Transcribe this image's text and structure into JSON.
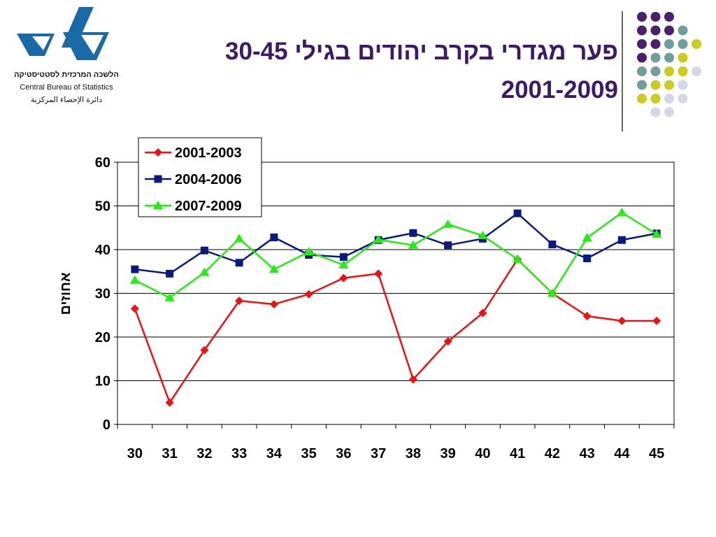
{
  "logo": {
    "hebrew": "הלשכה המרכזית לסטטיסטיקה",
    "english": "Central Bureau of Statistics",
    "arabic": "دائرة الإحصاء المركزية"
  },
  "title": {
    "line1": "פער מגדרי בקרב יהודים בגילי 30-45",
    "line2": "2001-2009"
  },
  "colors": {
    "purple": "#4a1f6e",
    "teal": "#6f9e9b",
    "olive": "#cccc1e",
    "lavender": "#d6d6ea",
    "series1": "#ee1111",
    "series2": "#0a1a80",
    "series3": "#22ee11"
  },
  "chart_data": {
    "type": "line",
    "ylabel": "אחוזים",
    "xlabel": "",
    "ylim": [
      0,
      60
    ],
    "yticks": [
      0,
      10,
      20,
      30,
      40,
      50,
      60
    ],
    "grid": "horizontal",
    "legend": "top-left",
    "x": [
      "30",
      "31",
      "32",
      "33",
      "34",
      "35",
      "36",
      "37",
      "38",
      "39",
      "40",
      "41",
      "42",
      "43",
      "44",
      "45"
    ],
    "series": [
      {
        "name": "2001-2003",
        "marker": "diamond",
        "color": "#ee1111",
        "values": [
          26.5,
          5,
          17,
          28.3,
          27.5,
          29.8,
          33.5,
          34.5,
          10.3,
          19,
          25.5,
          37.8,
          30,
          24.8,
          23.7,
          23.7
        ]
      },
      {
        "name": "2004-2006",
        "marker": "square",
        "color": "#0a1a80",
        "values": [
          35.5,
          34.5,
          39.8,
          37,
          42.8,
          38.8,
          38.3,
          42.2,
          43.8,
          41,
          42.5,
          48.3,
          41.2,
          38,
          42.2,
          43.7
        ]
      },
      {
        "name": "2007-2009",
        "marker": "triangle",
        "color": "#22ee11",
        "values": [
          33,
          29,
          34.8,
          42.5,
          35.5,
          39.5,
          36.5,
          42.3,
          41,
          45.8,
          43.2,
          37.8,
          30,
          42.7,
          48.5,
          43.5
        ]
      }
    ]
  }
}
